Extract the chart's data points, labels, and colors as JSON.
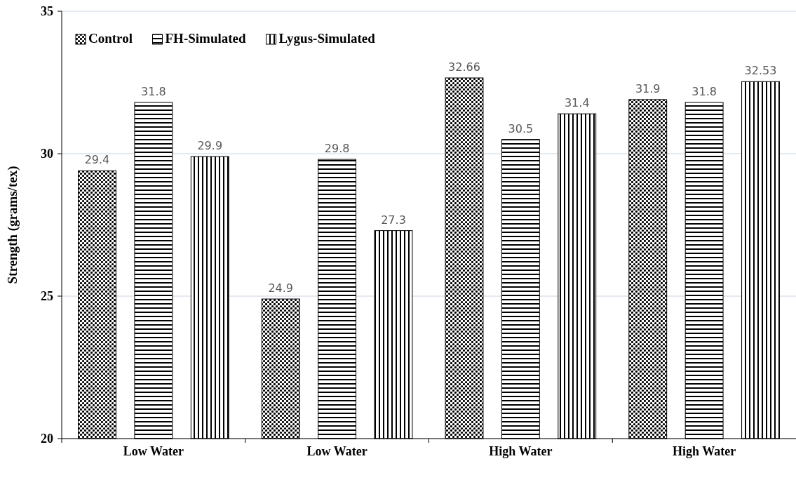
{
  "chart_data": {
    "type": "bar",
    "ylabel": "Strength (grams/tex)",
    "categories": [
      "Low Water",
      "Low Water",
      "High Water",
      "High Water"
    ],
    "series": [
      {
        "name": "Control",
        "color": "#000000",
        "values": [
          29.4,
          24.9,
          32.66,
          31.9
        ]
      },
      {
        "name": "FH-Simulated",
        "color": "#000000",
        "values": [
          31.8,
          29.8,
          30.5,
          31.8
        ]
      },
      {
        "name": "Lygus-Simulated",
        "color": "#000000",
        "values": [
          29.9,
          27.3,
          31.4,
          32.53
        ]
      }
    ],
    "ylim": [
      20,
      35
    ],
    "yticks": [
      20,
      25,
      30,
      35
    ],
    "grid": "y",
    "legend": "top left",
    "data_labels": true
  }
}
